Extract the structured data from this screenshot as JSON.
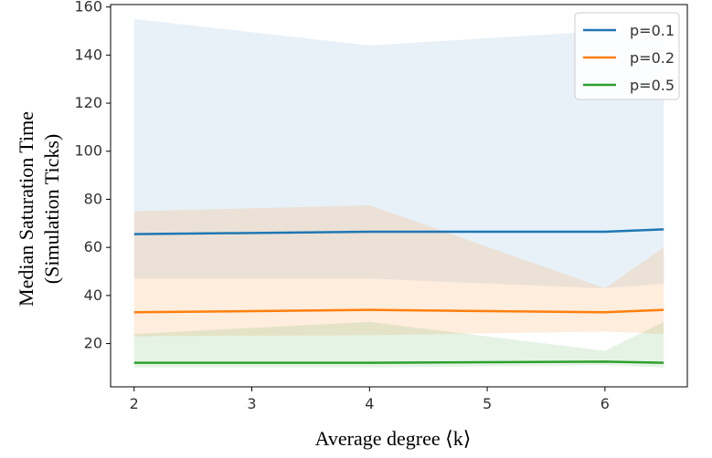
{
  "chart_data": {
    "type": "line",
    "title": "",
    "xlabel": "Average degree ⟨k⟩",
    "ylabel_lines": [
      "Median Saturation Time",
      "(Simulation Ticks)"
    ],
    "xlim": [
      1.8,
      6.7
    ],
    "ylim": [
      2,
      161
    ],
    "xticks": [
      2,
      3,
      4,
      5,
      6
    ],
    "yticks": [
      20,
      40,
      60,
      80,
      100,
      120,
      140,
      160
    ],
    "legend_position": "top-right",
    "x": [
      2,
      4,
      6,
      6.5
    ],
    "series": [
      {
        "name": "p=0.1",
        "color": "#1f77b4",
        "values": [
          65.5,
          66.5,
          66.5,
          67.5
        ],
        "lower": [
          47,
          47,
          43,
          45
        ],
        "upper": [
          155,
          144,
          150,
          150
        ],
        "band_opacity": 0.1
      },
      {
        "name": "p=0.2",
        "color": "#ff7f0e",
        "values": [
          33,
          34,
          33,
          34
        ],
        "lower": [
          23,
          23.5,
          25,
          24
        ],
        "upper": [
          75,
          77.5,
          43,
          60
        ],
        "band_opacity": 0.14
      },
      {
        "name": "p=0.5",
        "color": "#2ca02c",
        "values": [
          12,
          12,
          12.5,
          12
        ],
        "lower": [
          10,
          10,
          11,
          10
        ],
        "upper": [
          24,
          29,
          17,
          29
        ],
        "band_opacity": 0.12
      }
    ]
  }
}
